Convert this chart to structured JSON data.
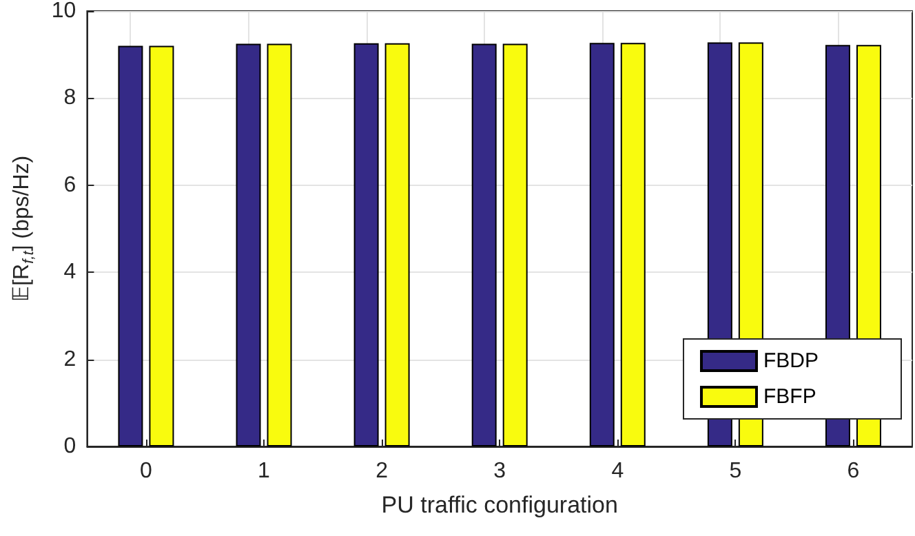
{
  "chart_data": {
    "type": "bar",
    "xlabel": "PU traffic configuration",
    "ylabel": "𝔼[R$_{f,t}$] (bps/Hz)",
    "categories": [
      "0",
      "1",
      "2",
      "3",
      "4",
      "5",
      "6"
    ],
    "series": [
      {
        "name": "FBDP",
        "color": "#352a87",
        "values": [
          9.2,
          9.25,
          9.26,
          9.25,
          9.27,
          9.28,
          9.22
        ]
      },
      {
        "name": "FBFP",
        "color": "#f9fb0e",
        "values": [
          9.2,
          9.25,
          9.26,
          9.25,
          9.27,
          9.28,
          9.22
        ]
      }
    ],
    "ylim": [
      0,
      10
    ],
    "yticks": [
      0,
      2,
      4,
      6,
      8,
      10
    ],
    "grid": true,
    "legend": "bottom right"
  }
}
